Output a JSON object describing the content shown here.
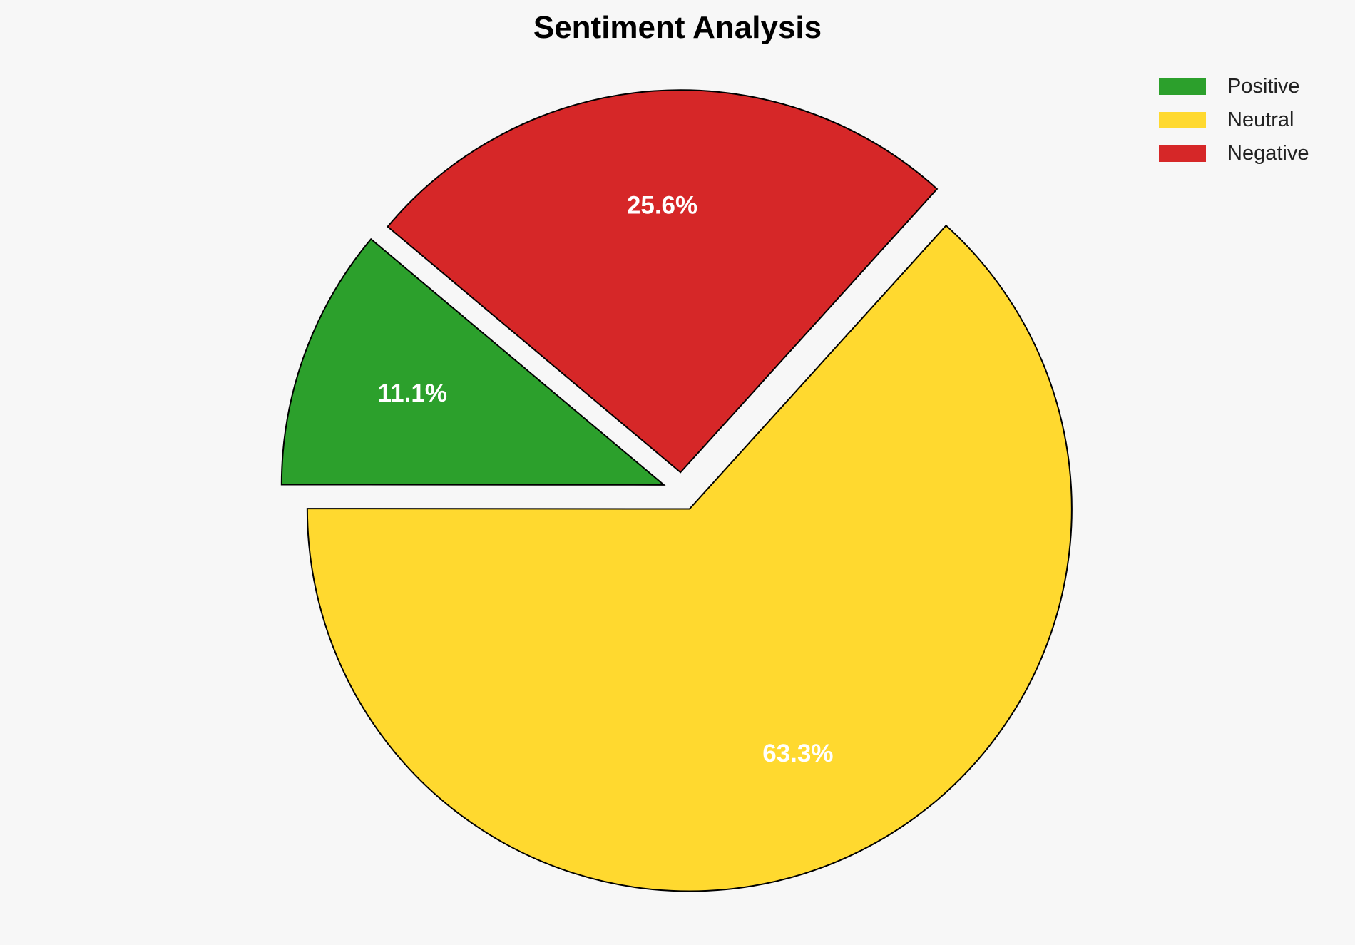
{
  "chart_data": {
    "type": "pie",
    "title": "Sentiment Analysis",
    "categories": [
      "Positive",
      "Neutral",
      "Negative"
    ],
    "values": [
      11.1,
      63.3,
      25.6
    ],
    "labels": [
      "11.1%",
      "63.3%",
      "25.6%"
    ],
    "colors": [
      "#2ca02c",
      "#ffd92f",
      "#d62728"
    ],
    "start_angle": 140,
    "explode": [
      0.05,
      0.05,
      0.05
    ],
    "edge_color": "#000000",
    "label_color": "#ffffff",
    "legend_placement": "top-right"
  }
}
